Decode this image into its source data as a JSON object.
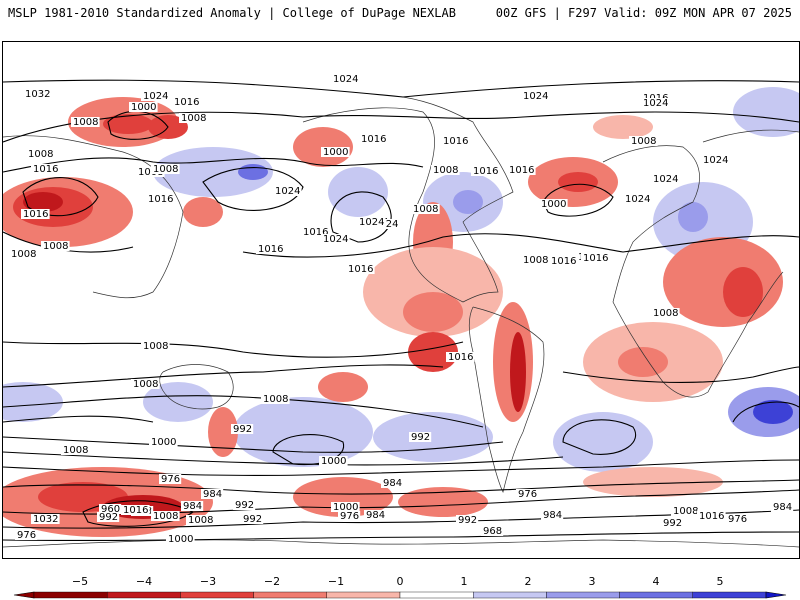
{
  "header": {
    "left": "MSLP 1981-2010 Standardized Anomaly | College of DuPage NEXLAB",
    "right": "00Z GFS | F297 Valid: 09Z MON APR 07 2025"
  },
  "colors": {
    "neg5": "#8b0000",
    "neg4": "#c0181c",
    "neg3": "#e0403c",
    "neg2": "#f07c70",
    "neg1": "#f8b6aa",
    "zero": "#ffffff",
    "pos1": "#c6c8f2",
    "pos2": "#9a9ceb",
    "pos3": "#6c70e2",
    "pos4": "#3d41d6",
    "pos5": "#1216c6",
    "contour": "#000000",
    "coast": "#333333"
  },
  "colorbar": {
    "ticks": [
      "−5",
      "−4",
      "−3",
      "−2",
      "−1",
      "0",
      "1",
      "2",
      "3",
      "4",
      "5"
    ]
  },
  "isobar_labels": [
    "1024",
    "1032",
    "1024",
    "1016",
    "1000",
    "1008",
    "1008",
    "1016",
    "1000",
    "1008",
    "1008",
    "1016",
    "1024",
    "1008",
    "1024",
    "1016",
    "1016",
    "1016",
    "1024",
    "1024",
    "1024",
    "1016",
    "1008",
    "1016",
    "1024",
    "1016",
    "1008",
    "1008",
    "1008",
    "1008",
    "1016",
    "1008",
    "1000",
    "1016",
    "1024",
    "1008",
    "1016",
    "1016",
    "1008",
    "1016",
    "1024",
    "1024",
    "1016",
    "1016",
    "1024",
    "1008",
    "992",
    "1008",
    "1008",
    "1000",
    "992",
    "1000",
    "1008",
    "992",
    "984",
    "976",
    "960",
    "968",
    "984",
    "992",
    "976",
    "1000",
    "984",
    "968",
    "976",
    "984",
    "976",
    "992",
    "1032",
    "1016",
    "1008",
    "1008",
    "992",
    "1000",
    "984",
    "992",
    "1008",
    "1016",
    "984",
    "976"
  ]
}
